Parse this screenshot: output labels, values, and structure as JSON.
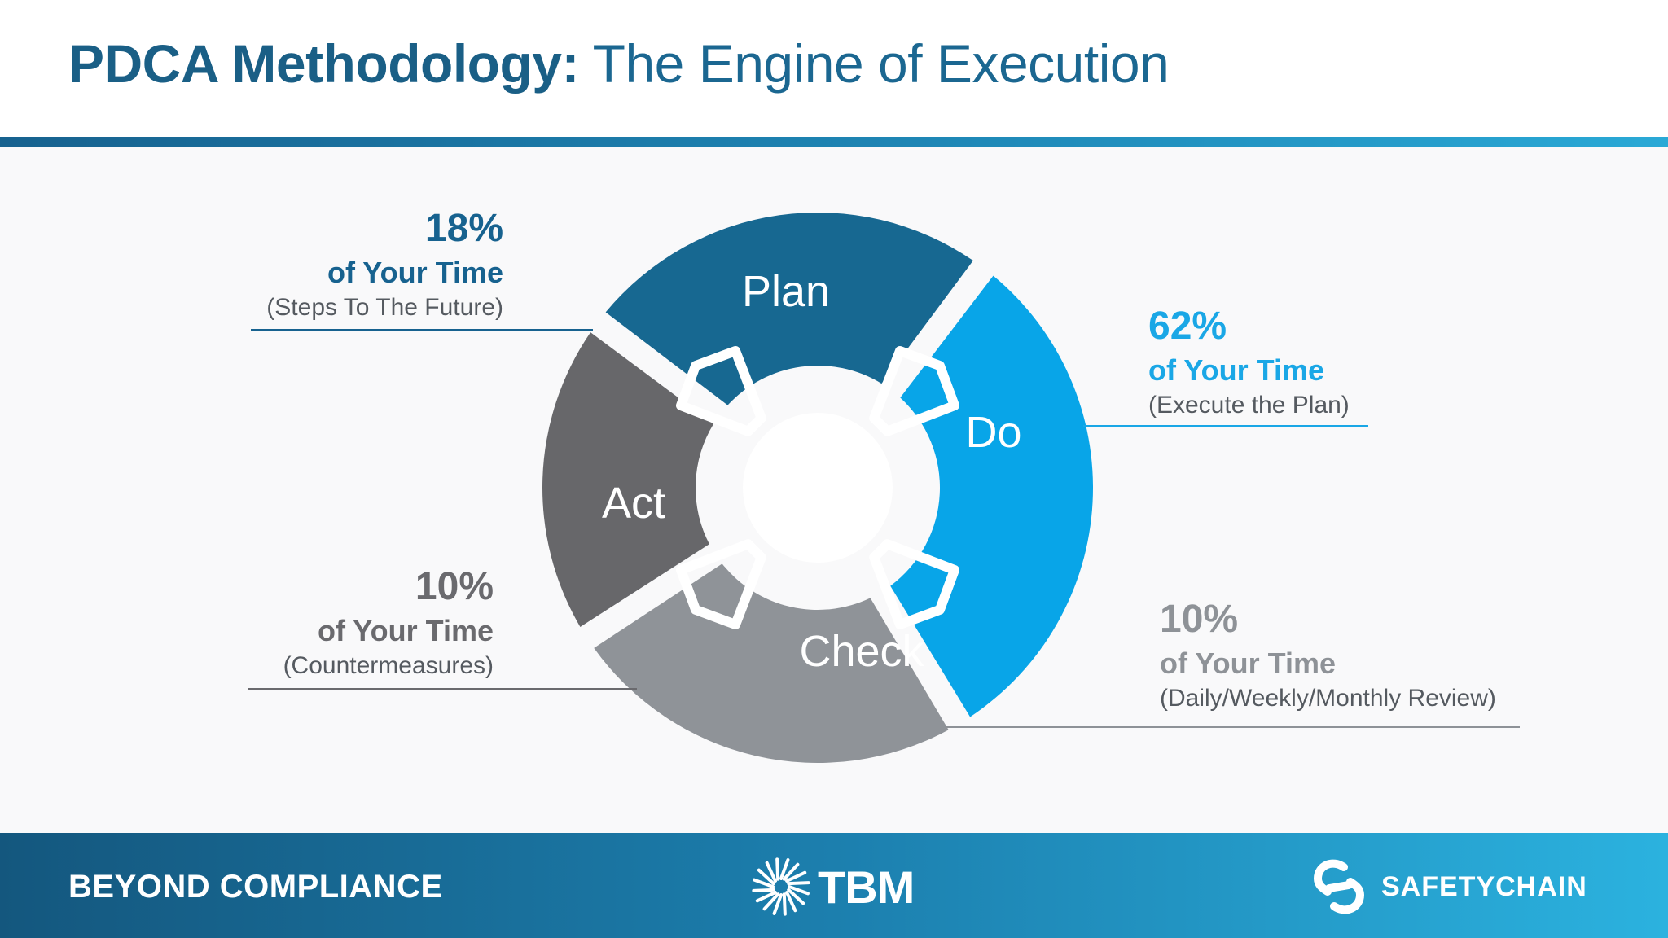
{
  "header": {
    "title_bold": "PDCA Methodology:",
    "title_regular": "The Engine of Execution"
  },
  "wheel": {
    "segments": [
      {
        "name": "Plan",
        "label": "Plan",
        "color": "#176891"
      },
      {
        "name": "Do",
        "label": "Do",
        "color": "#08a5e8"
      },
      {
        "name": "Check",
        "label": "Check",
        "color": "#8f9398"
      },
      {
        "name": "Act",
        "label": "Act",
        "color": "#67676a"
      }
    ],
    "arrow_color": "#ffffff"
  },
  "callouts": {
    "plan": {
      "percent": "18%",
      "your_time": "of Your Time",
      "note": "(Steps To The Future)",
      "color": "#17628f"
    },
    "do": {
      "percent": "62%",
      "your_time": "of Your Time",
      "note": "(Execute the Plan)",
      "color": "#1aa7e6"
    },
    "act": {
      "percent": "10%",
      "your_time": "of Your Time",
      "note": "(Countermeasures)",
      "color": "#6a6a6e"
    },
    "check": {
      "percent": "10%",
      "your_time": "of Your Time",
      "note": "(Daily/Weekly/Monthly Review)",
      "color": "#8e9297"
    }
  },
  "footer": {
    "tagline": "BEYOND COMPLIANCE",
    "logo_center": "TBM",
    "logo_right": "SAFETYCHAIN"
  }
}
